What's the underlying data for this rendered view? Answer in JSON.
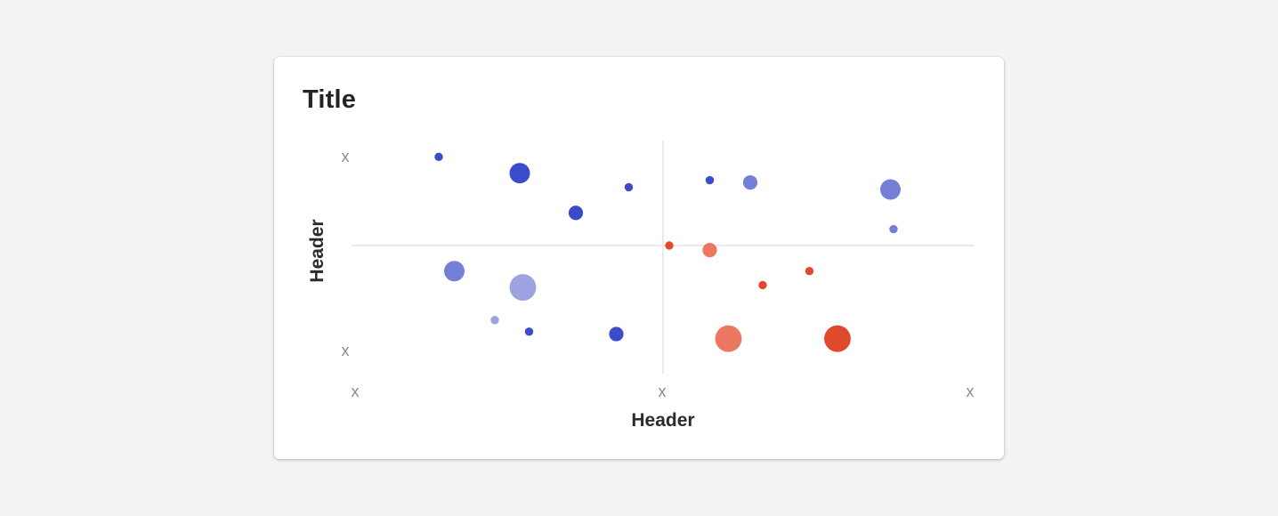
{
  "card": {
    "title": "Title"
  },
  "chart_data": {
    "type": "scatter",
    "title": "Title",
    "xlabel": "Header",
    "ylabel": "Header",
    "xlim": [
      0,
      10
    ],
    "ylim": [
      0,
      10
    ],
    "x_ticks": [
      "x",
      "x",
      "x"
    ],
    "y_ticks": [
      "x",
      "x"
    ],
    "center_lines": {
      "x": 5,
      "y": 5.5
    },
    "grid": false,
    "legend": "none",
    "colors": {
      "blue_dark": "#3a4bcc",
      "blue_mid": "#7480d8",
      "blue_light": "#9ca3e0",
      "red_dark": "#e04a2c",
      "red_light": "#ea7862"
    },
    "points": [
      {
        "x": 1.4,
        "y": 9.3,
        "size": 1,
        "color": "blue_dark"
      },
      {
        "x": 2.7,
        "y": 8.6,
        "size": 5,
        "color": "blue_dark"
      },
      {
        "x": 4.45,
        "y": 8.0,
        "size": 1,
        "color": "blue_dark"
      },
      {
        "x": 3.6,
        "y": 6.9,
        "size": 3,
        "color": "blue_dark"
      },
      {
        "x": 1.65,
        "y": 4.4,
        "size": 5,
        "color": "blue_mid"
      },
      {
        "x": 2.75,
        "y": 3.7,
        "size": 7,
        "color": "blue_light"
      },
      {
        "x": 2.3,
        "y": 2.3,
        "size": 1,
        "color": "blue_light"
      },
      {
        "x": 2.85,
        "y": 1.8,
        "size": 1,
        "color": "blue_dark"
      },
      {
        "x": 4.25,
        "y": 1.7,
        "size": 3,
        "color": "blue_dark"
      },
      {
        "x": 5.75,
        "y": 8.3,
        "size": 1,
        "color": "blue_dark"
      },
      {
        "x": 6.4,
        "y": 8.2,
        "size": 3,
        "color": "blue_mid"
      },
      {
        "x": 8.65,
        "y": 7.9,
        "size": 5,
        "color": "blue_mid"
      },
      {
        "x": 8.7,
        "y": 6.2,
        "size": 1,
        "color": "blue_mid"
      },
      {
        "x": 5.1,
        "y": 5.5,
        "size": 1,
        "color": "red_dark"
      },
      {
        "x": 5.75,
        "y": 5.3,
        "size": 3,
        "color": "red_light"
      },
      {
        "x": 6.6,
        "y": 3.8,
        "size": 1,
        "color": "red_dark"
      },
      {
        "x": 7.35,
        "y": 4.4,
        "size": 1,
        "color": "red_dark"
      },
      {
        "x": 6.05,
        "y": 1.5,
        "size": 7,
        "color": "red_light"
      },
      {
        "x": 7.8,
        "y": 1.5,
        "size": 7,
        "color": "red_dark"
      }
    ]
  }
}
